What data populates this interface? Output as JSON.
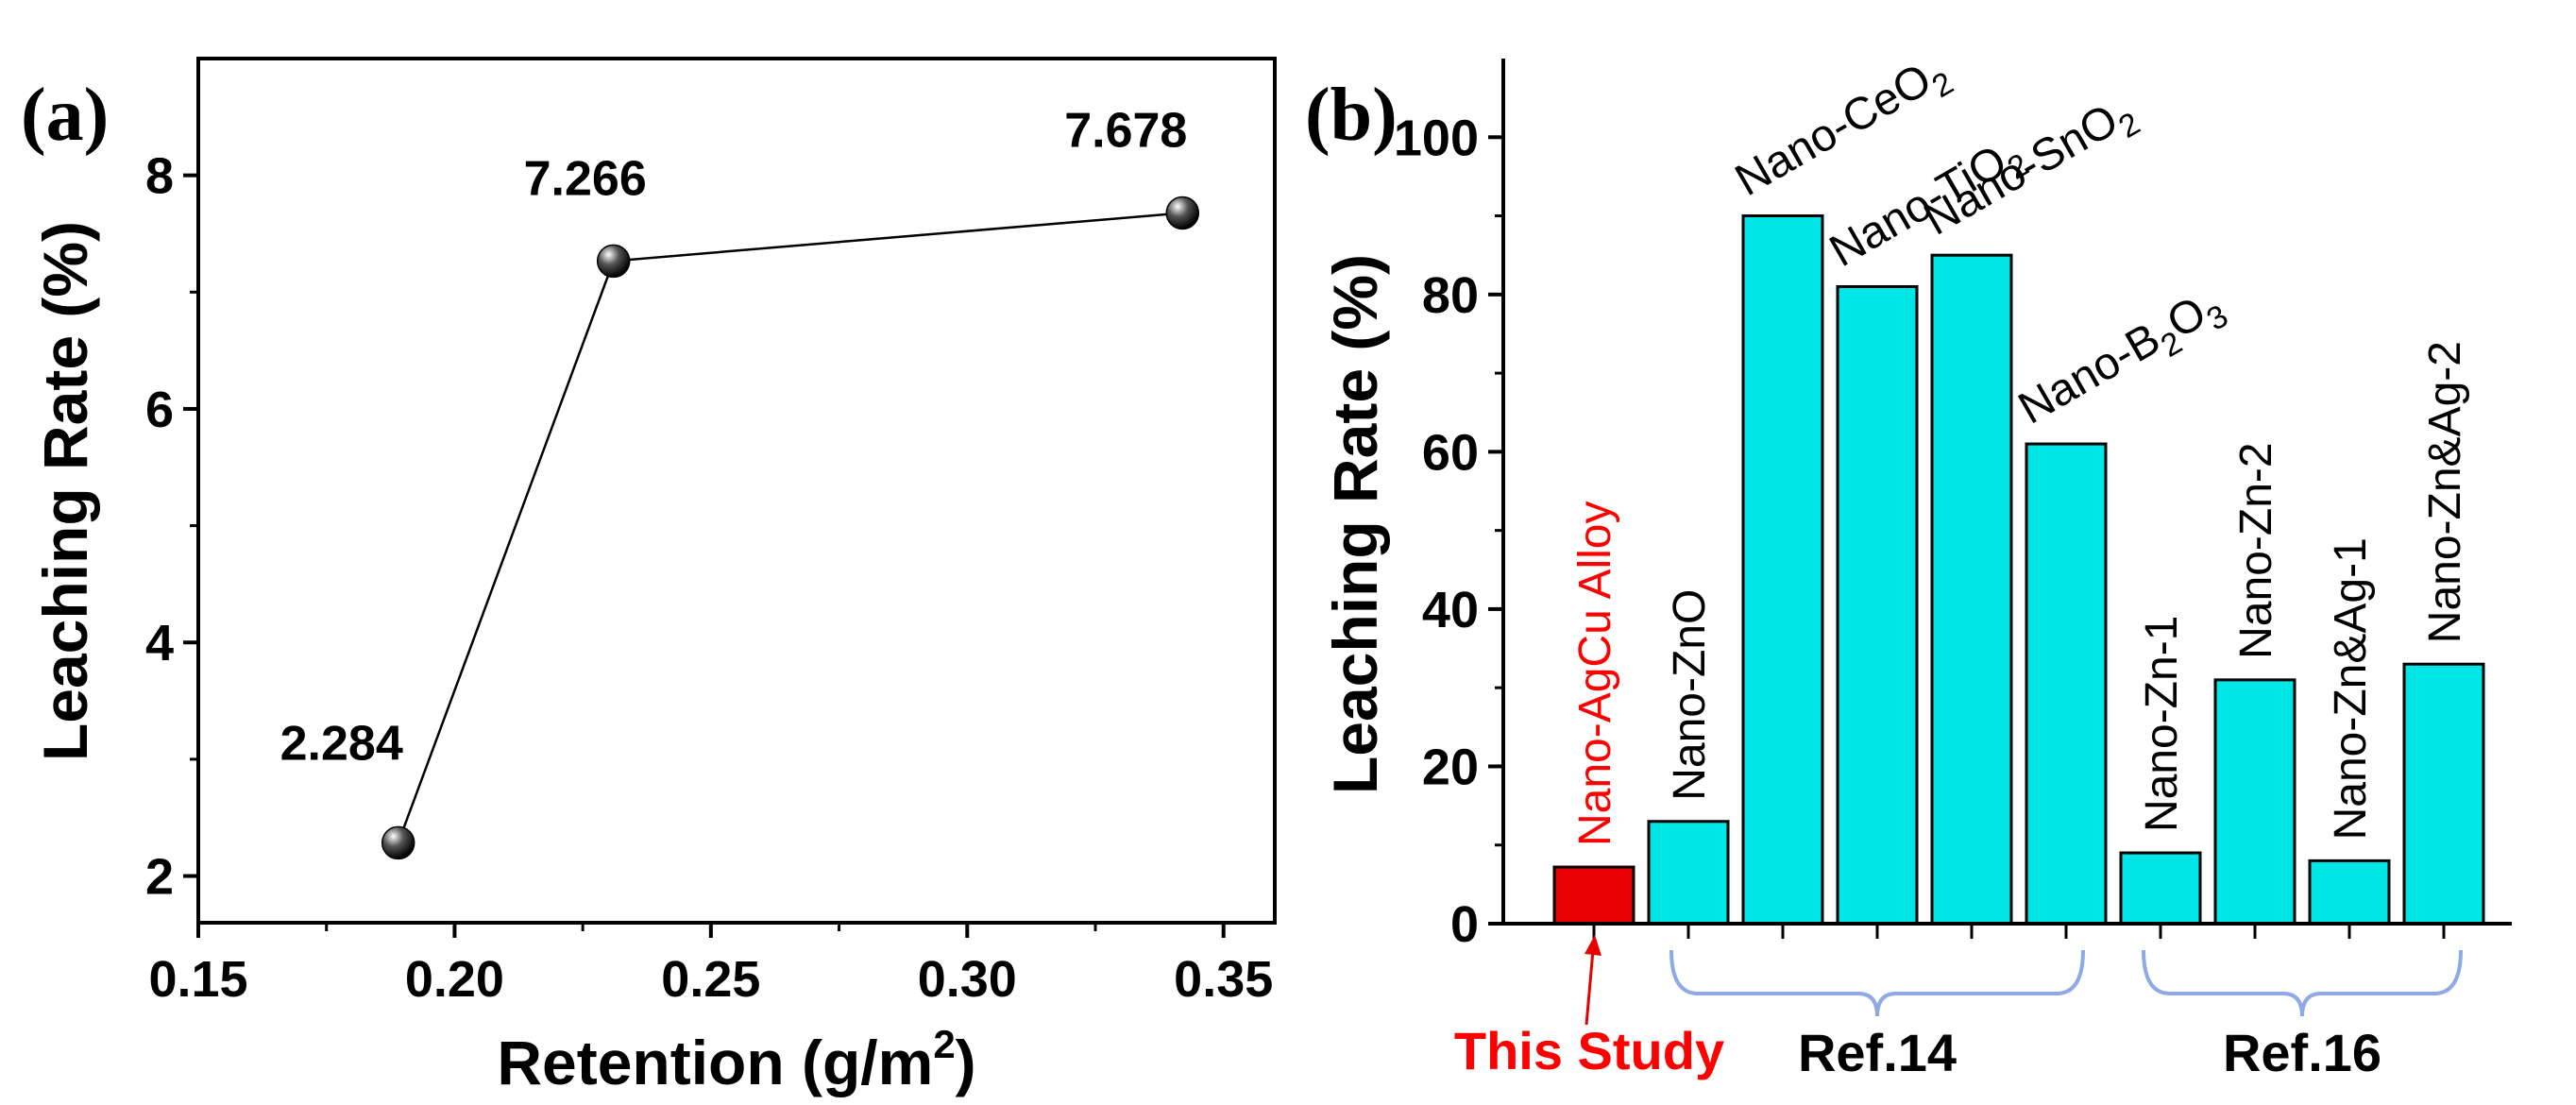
{
  "chart_data": [
    {
      "type": "line",
      "panel": "(a)",
      "xlabel": "Retention (g/m",
      "xlabel_sup": "2",
      "xlabel_end": ")",
      "ylabel": "Leaching Rate (%)",
      "xlim": [
        0.15,
        0.36
      ],
      "ylim": [
        1.6,
        9.0
      ],
      "xticks": [
        0.15,
        0.2,
        0.25,
        0.3,
        0.35
      ],
      "xtick_labels": [
        "0.15",
        "0.20",
        "0.25",
        "0.30",
        "0.35"
      ],
      "yticks": [
        2,
        4,
        6,
        8
      ],
      "ytick_labels": [
        "2",
        "4",
        "6",
        "8"
      ],
      "x": [
        0.189,
        0.231,
        0.342
      ],
      "y": [
        2.284,
        7.266,
        7.678
      ],
      "point_labels": [
        "2.284",
        "7.266",
        "7.678"
      ]
    },
    {
      "type": "bar",
      "panel": "(b)",
      "ylabel": "Leaching Rate (%)",
      "ylim": [
        0,
        110
      ],
      "yticks": [
        0,
        20,
        40,
        60,
        80,
        100
      ],
      "ytick_labels": [
        "0",
        "20",
        "40",
        "60",
        "80",
        "100"
      ],
      "categories": [
        {
          "pre": "Nano-AgCu Alloy",
          "sub": "",
          "post": ""
        },
        {
          "pre": "Nano-ZnO",
          "sub": "",
          "post": ""
        },
        {
          "pre": "Nano-CeO",
          "sub": "2",
          "post": ""
        },
        {
          "pre": "Nano-TiO",
          "sub": "2",
          "post": ""
        },
        {
          "pre": "Nano-SnO",
          "sub": "2",
          "post": ""
        },
        {
          "pre": "Nano-B",
          "sub": "2",
          "post": "O3"
        },
        {
          "pre": "Nano-Zn-1",
          "sub": "",
          "post": ""
        },
        {
          "pre": "Nano-Zn-2",
          "sub": "",
          "post": ""
        },
        {
          "pre": "Nano-Zn&Ag-1",
          "sub": "",
          "post": ""
        },
        {
          "pre": "Nano-Zn&Ag-2",
          "sub": "",
          "post": ""
        }
      ],
      "values": [
        7.2,
        13,
        90,
        81,
        85,
        61,
        9,
        31,
        8,
        33
      ],
      "highlight_index": 0,
      "groups": [
        {
          "label": "This Study",
          "from": 0,
          "to": 0
        },
        {
          "label": "Ref.14",
          "from": 1,
          "to": 5
        },
        {
          "label": "Ref.16",
          "from": 6,
          "to": 9
        }
      ]
    }
  ],
  "colors": {
    "bar_fill": "#00e6e6",
    "bar_highlight": "#e60000",
    "highlight_text": "#ff0000",
    "bracket": "#8fa8e6",
    "axis": "#000000"
  }
}
